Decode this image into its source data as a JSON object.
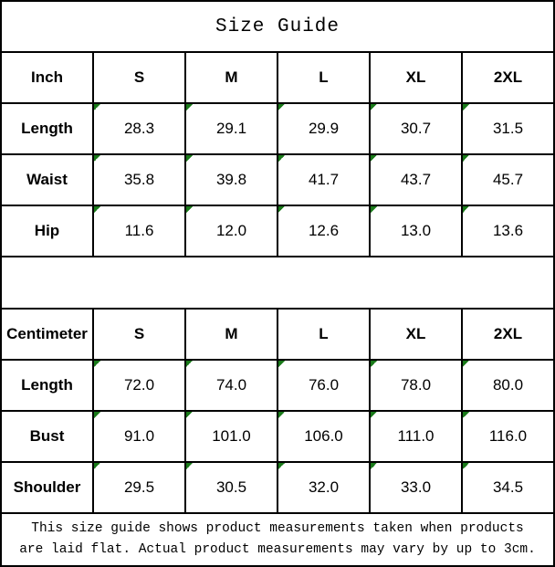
{
  "title": "Size Guide",
  "colors": {
    "border": "#000000",
    "text": "#000000",
    "background": "#ffffff",
    "error_triangle_green": "#1a7a1a"
  },
  "tables": [
    {
      "unit_label": "Inch",
      "size_headers": [
        "S",
        "M",
        "L",
        "XL",
        "2XL"
      ],
      "rows": [
        {
          "label": "Length",
          "values": [
            "28.3",
            "29.1",
            "29.9",
            "30.7",
            "31.5"
          ]
        },
        {
          "label": "Waist",
          "values": [
            "35.8",
            "39.8",
            "41.7",
            "43.7",
            "45.7"
          ]
        },
        {
          "label": "Hip",
          "values": [
            "11.6",
            "12.0",
            "12.6",
            "13.0",
            "13.6"
          ]
        }
      ]
    },
    {
      "unit_label": "Centimeter",
      "size_headers": [
        "S",
        "M",
        "L",
        "XL",
        "2XL"
      ],
      "rows": [
        {
          "label": "Length",
          "values": [
            "72.0",
            "74.0",
            "76.0",
            "78.0",
            "80.0"
          ]
        },
        {
          "label": "Bust",
          "values": [
            "91.0",
            "101.0",
            "106.0",
            "111.0",
            "116.0"
          ]
        },
        {
          "label": "Shoulder",
          "values": [
            "29.5",
            "30.5",
            "32.0",
            "33.0",
            "34.5"
          ]
        }
      ]
    }
  ],
  "footer_lines": [
    "This size guide shows product measurements taken when products",
    "are laid flat. Actual product measurements may vary by up to 3cm."
  ]
}
